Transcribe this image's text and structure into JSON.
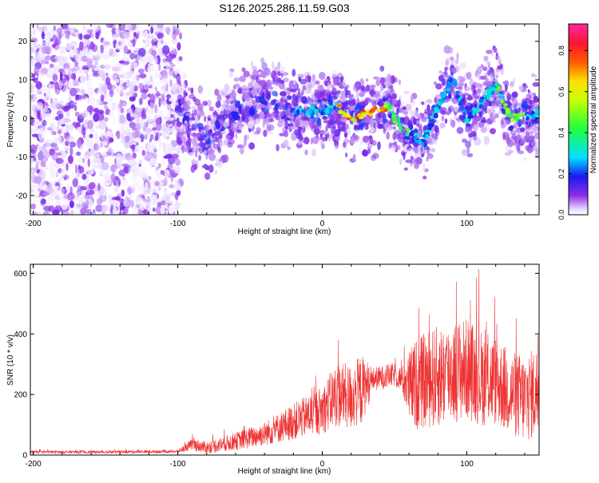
{
  "title": "S126.2025.286.11.59.G03",
  "chart_data": [
    {
      "type": "heatmap",
      "xlabel": "Height of straight line (km)",
      "ylabel": "Frequency (Hz)",
      "xlim": [
        -202,
        150
      ],
      "ylim": [
        -25,
        24.5
      ],
      "xticks": [
        -200,
        -100,
        0,
        100
      ],
      "yticks": [
        -20,
        -10,
        0,
        10,
        20
      ],
      "colorbar": {
        "label": "Normalized spectral amplitude",
        "range": [
          0,
          0.93
        ],
        "ticks": [
          "0.0",
          "0.2",
          "0.4",
          "0.6",
          "0.8"
        ],
        "tick_values": [
          0,
          0.2,
          0.4,
          0.6,
          0.8
        ]
      },
      "ridge": {
        "x": [
          -100,
          -80,
          -60,
          -40,
          -20,
          0,
          10,
          20,
          30,
          40,
          45,
          50,
          60,
          70,
          80,
          90,
          100,
          110,
          120,
          130,
          150
        ],
        "y": [
          2,
          -6,
          2,
          5,
          2,
          2,
          3,
          0,
          1,
          2,
          3,
          0,
          -4,
          -6,
          3,
          10,
          0,
          4,
          9,
          0,
          1
        ]
      }
    },
    {
      "type": "line",
      "xlabel": "Height of straight line (km)",
      "ylabel": "SNR (10 * v/v)",
      "xlim": [
        -202,
        150
      ],
      "ylim": [
        0,
        630
      ],
      "xticks": [
        -200,
        -100,
        0,
        100
      ],
      "yticks": [
        0,
        200,
        400,
        600
      ],
      "color": "#ee3333",
      "series": [
        {
          "name": "SNR",
          "x": [
            -202,
            -150,
            -100,
            -90,
            -80,
            -60,
            -40,
            -20,
            0,
            10,
            20,
            27,
            35,
            50,
            55,
            60,
            65,
            80,
            90,
            100,
            110,
            120,
            130,
            140,
            150
          ],
          "y": [
            10,
            10,
            12,
            35,
            25,
            45,
            70,
            110,
            150,
            200,
            190,
            215,
            250,
            265,
            250,
            225,
            235,
            260,
            275,
            285,
            255,
            245,
            205,
            185,
            215
          ],
          "spread": [
            5,
            5,
            5,
            20,
            20,
            30,
            40,
            60,
            80,
            110,
            110,
            120,
            40,
            40,
            40,
            120,
            150,
            170,
            170,
            170,
            160,
            150,
            140,
            150,
            150
          ]
        }
      ]
    }
  ]
}
